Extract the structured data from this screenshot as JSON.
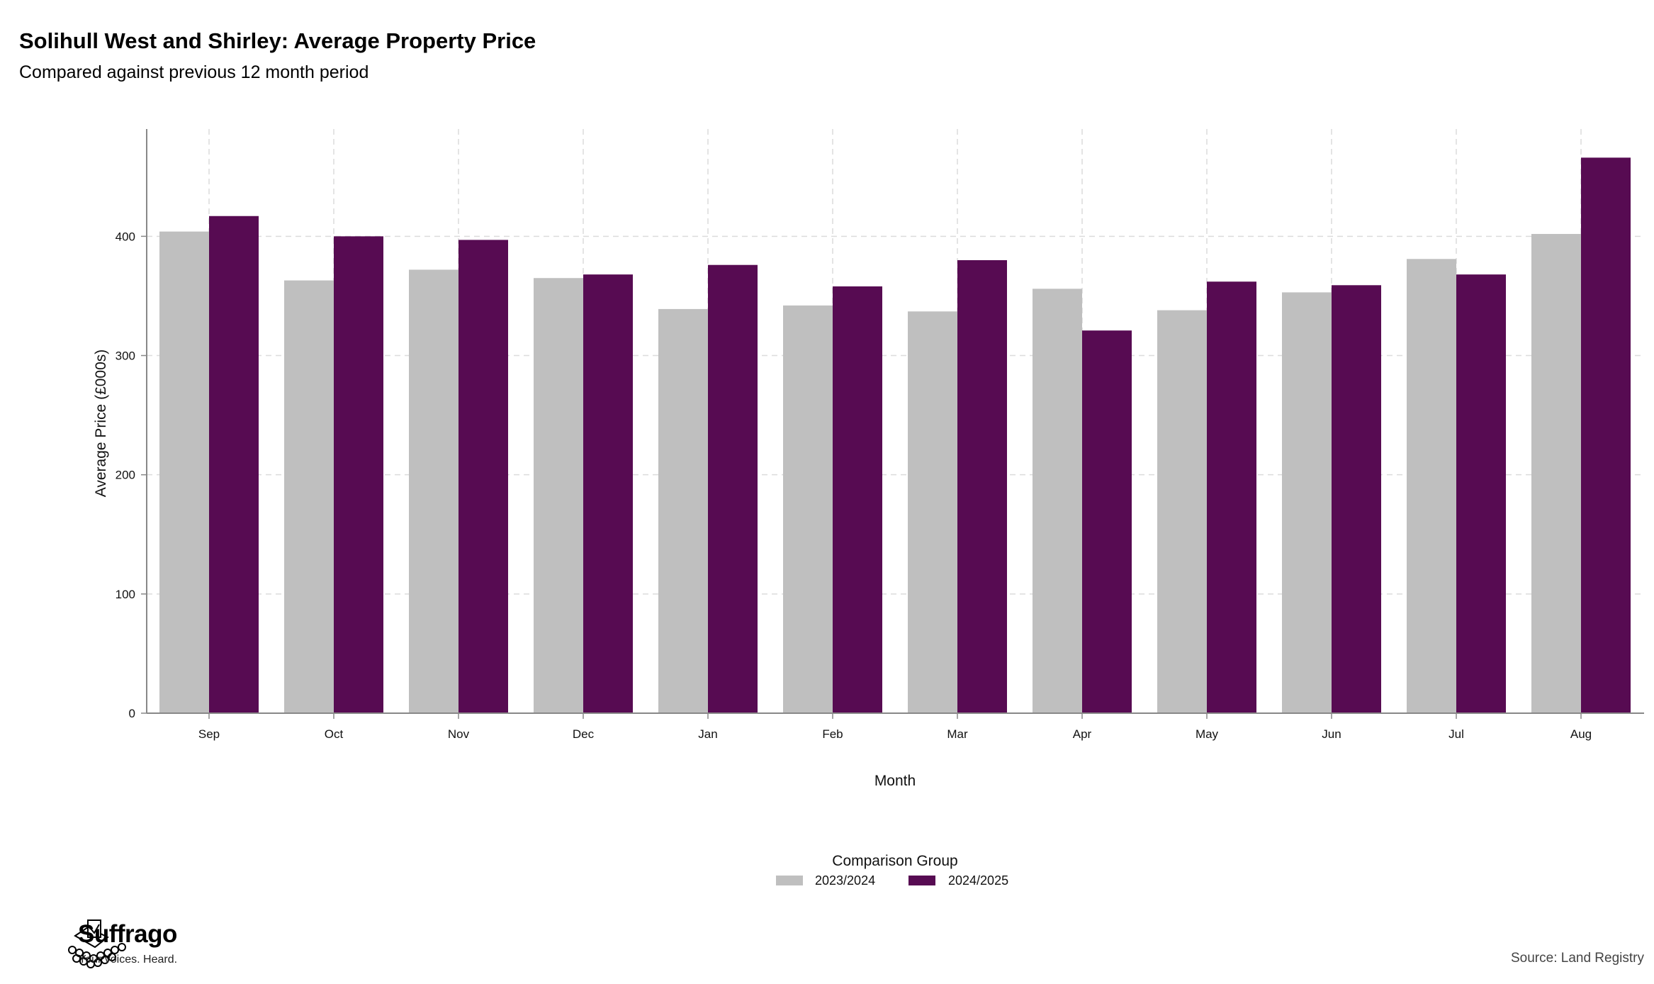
{
  "chart_data": {
    "type": "bar",
    "title": "Solihull West and Shirley: Average Property Price",
    "subtitle": "Compared against previous 12 month period",
    "xlabel": "Month",
    "ylabel": "Average Price (£000s)",
    "ylim": [
      0,
      490
    ],
    "yticks": [
      0,
      100,
      200,
      300,
      400
    ],
    "grid": true,
    "legend_position": "bottom",
    "legend_title": "Comparison Group",
    "categories": [
      "Sep",
      "Oct",
      "Nov",
      "Dec",
      "Jan",
      "Feb",
      "Mar",
      "Apr",
      "May",
      "Jun",
      "Jul",
      "Aug"
    ],
    "series": [
      {
        "name": "2023/2024",
        "color": "#bfbfbf",
        "values": [
          404,
          363,
          372,
          365,
          339,
          342,
          337,
          356,
          338,
          353,
          381,
          402
        ]
      },
      {
        "name": "2024/2025",
        "color": "#570b52",
        "values": [
          417,
          400,
          397,
          368,
          376,
          358,
          380,
          321,
          362,
          359,
          368,
          466
        ]
      }
    ]
  },
  "footer": {
    "brand_name": "Suffrago",
    "brand_tagline": "Your voices. Heard.",
    "source": "Source: Land Registry"
  }
}
